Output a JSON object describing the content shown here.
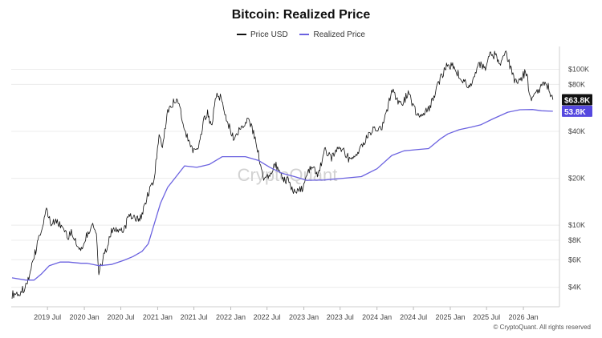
{
  "colors": {
    "price_line": "#111111",
    "realized_line": "#6b62e0",
    "price_badge": "#111111",
    "realized_badge": "#5548df",
    "grid": "#ececec"
  },
  "watermark": "CryptoQuant",
  "copyright": "© CryptoQuant. All rights reserved",
  "chart_data": {
    "type": "line",
    "title": "Bitcoin: Realized Price",
    "y_scale": "log",
    "ylim": [
      3000,
      140000
    ],
    "xlim": [
      "2019-01-01",
      "2026-06-30"
    ],
    "y_ticks": [
      {
        "value": 4000,
        "label": "$4K"
      },
      {
        "value": 6000,
        "label": "$6K"
      },
      {
        "value": 8000,
        "label": "$8K"
      },
      {
        "value": 10000,
        "label": "$10K"
      },
      {
        "value": 20000,
        "label": "$20K"
      },
      {
        "value": 40000,
        "label": "$40K"
      },
      {
        "value": 80000,
        "label": "$80K"
      },
      {
        "value": 100000,
        "label": "$100K"
      }
    ],
    "x_ticks": [
      {
        "date": "2019-07-01",
        "label": "2019 Jul"
      },
      {
        "date": "2020-01-01",
        "label": "2020 Jan"
      },
      {
        "date": "2020-07-01",
        "label": "2020 Jul"
      },
      {
        "date": "2021-01-01",
        "label": "2021 Jan"
      },
      {
        "date": "2021-07-01",
        "label": "2021 Jul"
      },
      {
        "date": "2022-01-01",
        "label": "2022 Jan"
      },
      {
        "date": "2022-07-01",
        "label": "2022 Jul"
      },
      {
        "date": "2023-01-01",
        "label": "2023 Jan"
      },
      {
        "date": "2023-07-01",
        "label": "2023 Jul"
      },
      {
        "date": "2024-01-01",
        "label": "2024 Jan"
      },
      {
        "date": "2024-07-01",
        "label": "2024 Jul"
      },
      {
        "date": "2025-01-01",
        "label": "2025 Jan"
      },
      {
        "date": "2025-07-01",
        "label": "2025 Jul"
      },
      {
        "date": "2026-01-01",
        "label": "2026 Jan"
      }
    ],
    "grid": true,
    "legend_position": "top-center",
    "series": [
      {
        "name": "Price USD",
        "badge": "$63.8K",
        "points": [
          [
            "2019-01-05",
            3600
          ],
          [
            "2019-02-10",
            3700
          ],
          [
            "2019-03-15",
            4000
          ],
          [
            "2019-04-10",
            5200
          ],
          [
            "2019-05-15",
            7900
          ],
          [
            "2019-06-26",
            12500
          ],
          [
            "2019-07-15",
            10400
          ],
          [
            "2019-08-15",
            10300
          ],
          [
            "2019-09-20",
            9800
          ],
          [
            "2019-10-15",
            8300
          ],
          [
            "2019-10-28",
            9400
          ],
          [
            "2019-11-25",
            7200
          ],
          [
            "2019-12-18",
            6800
          ],
          [
            "2020-01-15",
            8700
          ],
          [
            "2020-02-12",
            10300
          ],
          [
            "2020-03-01",
            8600
          ],
          [
            "2020-03-13",
            4900
          ],
          [
            "2020-04-15",
            6800
          ],
          [
            "2020-05-15",
            9300
          ],
          [
            "2020-06-15",
            9400
          ],
          [
            "2020-07-15",
            9200
          ],
          [
            "2020-08-15",
            11800
          ],
          [
            "2020-09-15",
            10800
          ],
          [
            "2020-10-15",
            11500
          ],
          [
            "2020-11-15",
            16000
          ],
          [
            "2020-12-15",
            19500
          ],
          [
            "2021-01-08",
            40000
          ],
          [
            "2021-01-25",
            32000
          ],
          [
            "2021-02-20",
            55000
          ],
          [
            "2021-03-13",
            60000
          ],
          [
            "2021-04-14",
            63000
          ],
          [
            "2021-05-20",
            40000
          ],
          [
            "2021-06-22",
            31000
          ],
          [
            "2021-07-20",
            30000
          ],
          [
            "2021-08-20",
            47000
          ],
          [
            "2021-09-07",
            52000
          ],
          [
            "2021-09-25",
            42500
          ],
          [
            "2021-10-20",
            66000
          ],
          [
            "2021-11-10",
            67500
          ],
          [
            "2021-12-10",
            48000
          ],
          [
            "2022-01-22",
            35000
          ],
          [
            "2022-02-15",
            43000
          ],
          [
            "2022-03-28",
            47000
          ],
          [
            "2022-04-25",
            39000
          ],
          [
            "2022-05-15",
            30000
          ],
          [
            "2022-06-18",
            19000
          ],
          [
            "2022-07-30",
            23500
          ],
          [
            "2022-08-15",
            24200
          ],
          [
            "2022-09-15",
            20000
          ],
          [
            "2022-10-15",
            19200
          ],
          [
            "2022-11-10",
            16800
          ],
          [
            "2022-12-20",
            16800
          ],
          [
            "2023-01-20",
            22500
          ],
          [
            "2023-02-20",
            24500
          ],
          [
            "2023-03-10",
            20000
          ],
          [
            "2023-04-14",
            30400
          ],
          [
            "2023-05-15",
            27000
          ],
          [
            "2023-06-25",
            30500
          ],
          [
            "2023-07-15",
            30000
          ],
          [
            "2023-08-20",
            26000
          ],
          [
            "2023-09-15",
            26500
          ],
          [
            "2023-10-25",
            34500
          ],
          [
            "2023-11-20",
            37500
          ],
          [
            "2023-12-20",
            43500
          ],
          [
            "2024-01-22",
            40000
          ],
          [
            "2024-02-15",
            52000
          ],
          [
            "2024-03-14",
            73000
          ],
          [
            "2024-05-01",
            57500
          ],
          [
            "2024-06-05",
            71000
          ],
          [
            "2024-07-05",
            55000
          ],
          [
            "2024-08-05",
            50000
          ],
          [
            "2024-09-06",
            53500
          ],
          [
            "2024-10-15",
            67000
          ],
          [
            "2024-11-12",
            88000
          ],
          [
            "2024-12-17",
            107000
          ],
          [
            "2025-01-20",
            105000
          ],
          [
            "2025-02-25",
            86000
          ],
          [
            "2025-04-08",
            76000
          ],
          [
            "2025-05-22",
            111000
          ],
          [
            "2025-06-22",
            101000
          ],
          [
            "2025-07-14",
            122000
          ],
          [
            "2025-08-14",
            123000
          ],
          [
            "2025-09-01",
            108000
          ],
          [
            "2025-10-06",
            125000
          ],
          [
            "2025-11-21",
            83000
          ],
          [
            "2025-12-20",
            88000
          ],
          [
            "2026-01-15",
            96000
          ],
          [
            "2026-02-06",
            65000
          ],
          [
            "2026-03-10",
            72000
          ],
          [
            "2026-04-15",
            80000
          ],
          [
            "2026-05-05",
            78000
          ],
          [
            "2026-05-28",
            63800
          ]
        ]
      },
      {
        "name": "Realized Price",
        "badge": "53.8K",
        "points": [
          [
            "2019-01-05",
            4600
          ],
          [
            "2019-03-15",
            4450
          ],
          [
            "2019-04-25",
            4450
          ],
          [
            "2019-05-30",
            4850
          ],
          [
            "2019-07-10",
            5500
          ],
          [
            "2019-09-01",
            5800
          ],
          [
            "2019-10-15",
            5800
          ],
          [
            "2019-12-15",
            5700
          ],
          [
            "2020-01-15",
            5700
          ],
          [
            "2020-03-15",
            5500
          ],
          [
            "2020-05-15",
            5600
          ],
          [
            "2020-07-15",
            5950
          ],
          [
            "2020-08-31",
            6300
          ],
          [
            "2020-10-15",
            6800
          ],
          [
            "2020-11-15",
            7600
          ],
          [
            "2020-12-15",
            10200
          ],
          [
            "2021-01-15",
            13800
          ],
          [
            "2021-02-20",
            17500
          ],
          [
            "2021-04-10",
            21000
          ],
          [
            "2021-05-15",
            24000
          ],
          [
            "2021-07-15",
            23500
          ],
          [
            "2021-09-15",
            24500
          ],
          [
            "2021-11-20",
            27500
          ],
          [
            "2022-01-15",
            27500
          ],
          [
            "2022-03-15",
            27500
          ],
          [
            "2022-05-20",
            26000
          ],
          [
            "2022-07-15",
            23500
          ],
          [
            "2022-09-15",
            21500
          ],
          [
            "2022-11-15",
            20500
          ],
          [
            "2023-01-15",
            19400
          ],
          [
            "2023-04-15",
            19500
          ],
          [
            "2023-07-15",
            20000
          ],
          [
            "2023-10-15",
            20500
          ],
          [
            "2024-01-01",
            23000
          ],
          [
            "2024-03-15",
            28000
          ],
          [
            "2024-05-15",
            30000
          ],
          [
            "2024-07-15",
            30500
          ],
          [
            "2024-09-15",
            31000
          ],
          [
            "2024-11-15",
            36000
          ],
          [
            "2024-12-20",
            38500
          ],
          [
            "2025-02-15",
            41000
          ],
          [
            "2025-04-15",
            42500
          ],
          [
            "2025-06-01",
            44000
          ],
          [
            "2025-08-01",
            48000
          ],
          [
            "2025-10-15",
            53000
          ],
          [
            "2025-12-15",
            55000
          ],
          [
            "2026-02-15",
            55200
          ],
          [
            "2026-04-01",
            54200
          ],
          [
            "2026-05-28",
            53800
          ]
        ]
      }
    ]
  }
}
